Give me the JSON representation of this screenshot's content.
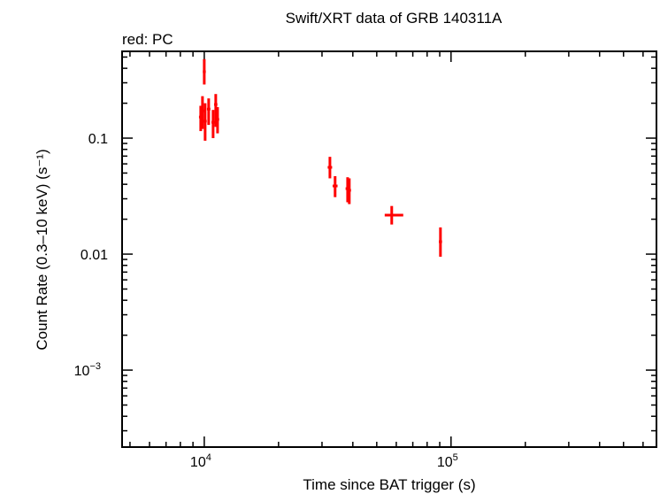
{
  "chart_data": {
    "type": "scatter",
    "title": "Swift/XRT data of GRB 140311A",
    "subtitle": "red: PC",
    "xlabel": "Time since BAT trigger (s)",
    "ylabel": "Count Rate (0.3–10 keV) (s⁻¹)",
    "xscale": "log",
    "yscale": "log",
    "xlim": [
      4645,
      680000
    ],
    "ylim": [
      0.000217,
      0.56
    ],
    "x_ticks": [
      {
        "value": 10000,
        "base": "10",
        "exp": "4"
      },
      {
        "value": 100000,
        "base": "10",
        "exp": "5"
      }
    ],
    "y_ticks": [
      {
        "value": 0.1,
        "base": "0.1",
        "exp": ""
      },
      {
        "value": 0.01,
        "base": "0.01",
        "exp": ""
      },
      {
        "value": 0.001,
        "base": "10",
        "exp": "−3"
      }
    ],
    "series": [
      {
        "name": "PC",
        "color": "#ff0000",
        "points": [
          {
            "x": 10000,
            "y": 0.374,
            "xlo": 9950,
            "xhi": 10060,
            "ylo": 0.29,
            "yhi": 0.48
          },
          {
            "x": 9675,
            "y": 0.152,
            "xlo": 9600,
            "xhi": 9750,
            "ylo": 0.115,
            "yhi": 0.19
          },
          {
            "x": 9835,
            "y": 0.172,
            "xlo": 9770,
            "xhi": 9900,
            "ylo": 0.12,
            "yhi": 0.23
          },
          {
            "x": 10080,
            "y": 0.14,
            "xlo": 10010,
            "xhi": 10150,
            "ylo": 0.095,
            "yhi": 0.2
          },
          {
            "x": 10420,
            "y": 0.178,
            "xlo": 10340,
            "xhi": 10500,
            "ylo": 0.13,
            "yhi": 0.22
          },
          {
            "x": 10860,
            "y": 0.137,
            "xlo": 10780,
            "xhi": 10940,
            "ylo": 0.1,
            "yhi": 0.175
          },
          {
            "x": 11130,
            "y": 0.195,
            "xlo": 11050,
            "xhi": 11210,
            "ylo": 0.125,
            "yhi": 0.24
          },
          {
            "x": 11320,
            "y": 0.145,
            "xlo": 11240,
            "xhi": 11400,
            "ylo": 0.11,
            "yhi": 0.185
          },
          {
            "x": 32300,
            "y": 0.056,
            "xlo": 31900,
            "xhi": 32700,
            "ylo": 0.045,
            "yhi": 0.069
          },
          {
            "x": 33900,
            "y": 0.0387,
            "xlo": 33400,
            "xhi": 34400,
            "ylo": 0.031,
            "yhi": 0.047
          },
          {
            "x": 38100,
            "y": 0.0367,
            "xlo": 37700,
            "xhi": 38500,
            "ylo": 0.028,
            "yhi": 0.046
          },
          {
            "x": 38700,
            "y": 0.0355,
            "xlo": 38400,
            "xhi": 39000,
            "ylo": 0.027,
            "yhi": 0.045
          },
          {
            "x": 57500,
            "y": 0.0217,
            "xlo": 54300,
            "xhi": 63500,
            "ylo": 0.018,
            "yhi": 0.026
          },
          {
            "x": 90600,
            "y": 0.0128,
            "xlo": 90000,
            "xhi": 91200,
            "ylo": 0.0095,
            "yhi": 0.017
          }
        ]
      }
    ]
  }
}
